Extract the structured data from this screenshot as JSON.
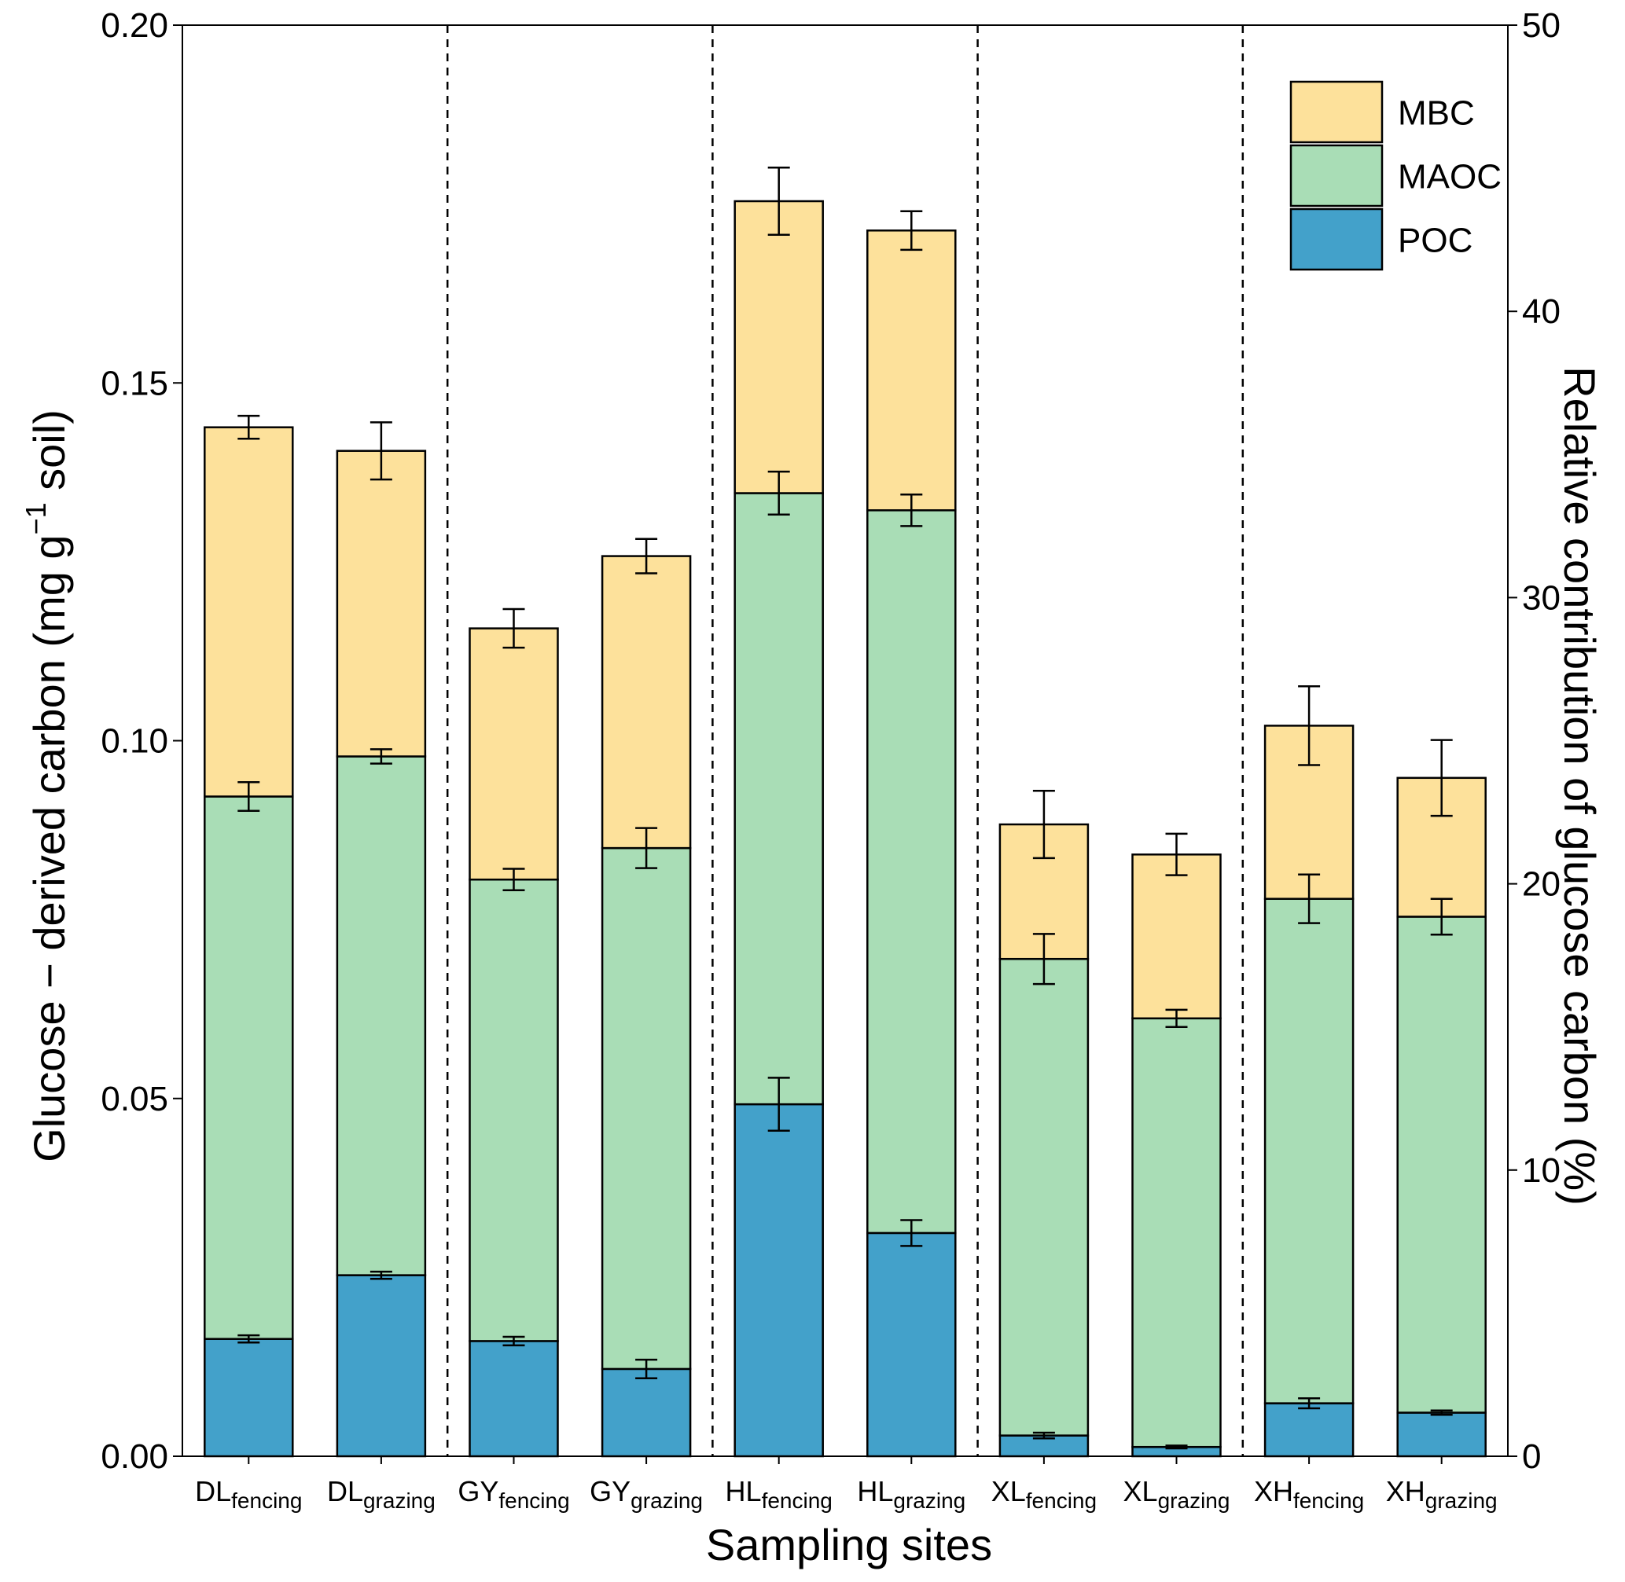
{
  "chart_data": {
    "type": "bar",
    "stacked": true,
    "categories": [
      {
        "main": "DL",
        "sub": "fencing"
      },
      {
        "main": "DL",
        "sub": "grazing"
      },
      {
        "main": "GY",
        "sub": "fencing"
      },
      {
        "main": "GY",
        "sub": "grazing"
      },
      {
        "main": "HL",
        "sub": "fencing"
      },
      {
        "main": "HL",
        "sub": "grazing"
      },
      {
        "main": "XL",
        "sub": "fencing"
      },
      {
        "main": "XL",
        "sub": "grazing"
      },
      {
        "main": "XH",
        "sub": "fencing"
      },
      {
        "main": "XH",
        "sub": "grazing"
      }
    ],
    "series": [
      {
        "name": "POC",
        "color": "#43a1ca",
        "cumulative_top": [
          0.0164,
          0.0253,
          0.0161,
          0.0122,
          0.0492,
          0.0312,
          0.0029,
          0.0013,
          0.0074,
          0.0061
        ],
        "error": [
          0.0005,
          0.0005,
          0.0006,
          0.0013,
          0.0037,
          0.0018,
          0.0004,
          0.0002,
          0.0007,
          0.0003
        ]
      },
      {
        "name": "MAOC",
        "color": "#a9ddb6",
        "cumulative_top": [
          0.0922,
          0.0978,
          0.0806,
          0.085,
          0.1346,
          0.1322,
          0.0695,
          0.0612,
          0.0779,
          0.0754
        ],
        "error": [
          0.002,
          0.001,
          0.0015,
          0.0028,
          0.003,
          0.0022,
          0.0035,
          0.0012,
          0.0034,
          0.0025
        ]
      },
      {
        "name": "MBC",
        "color": "#fde19b",
        "cumulative_top": [
          0.1438,
          0.1405,
          0.1157,
          0.1258,
          0.1754,
          0.1713,
          0.0883,
          0.0841,
          0.1021,
          0.0948
        ],
        "error": [
          0.0016,
          0.004,
          0.0027,
          0.0024,
          0.0047,
          0.0027,
          0.0047,
          0.0029,
          0.0055,
          0.0053
        ]
      }
    ],
    "dividers_after_index": [
      1,
      3,
      5,
      7
    ],
    "xlabel": "Sampling sites",
    "ylabel_main": "Glucose − derived carbon (mg g",
    "ylabel_sup": "−1",
    "ylabel_end": " soil)",
    "y2label": "Relative contribution of glucose carbon (%)",
    "ylim": [
      0,
      0.2
    ],
    "yticks": [
      "0.00",
      "0.05",
      "0.10",
      "0.15",
      "0.20"
    ],
    "y2lim": [
      0,
      50
    ],
    "y2ticks": [
      "0",
      "10",
      "20",
      "30",
      "40",
      "50"
    ],
    "legend_order": [
      "MBC",
      "MAOC",
      "POC"
    ],
    "legend_position": "top-right",
    "grid": false
  }
}
